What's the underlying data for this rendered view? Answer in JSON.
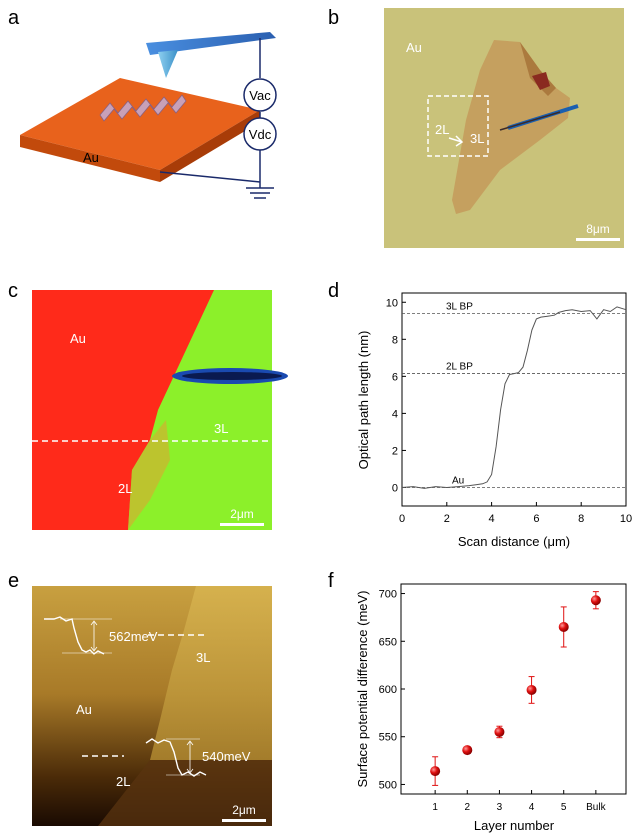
{
  "figure": {
    "panel_labels": [
      "a",
      "b",
      "c",
      "d",
      "e",
      "f"
    ]
  },
  "panel_a": {
    "substrate_label": "Au",
    "vac_label": "Vac",
    "vdc_label": "Vdc",
    "substrate_color": "#e8621c",
    "cantilever_color": "#3b7fcc"
  },
  "panel_b": {
    "au_label": "Au",
    "label_2l": "2L",
    "label_3l": "3L",
    "scale_bar": "8μm",
    "background_color": "#c9c27a"
  },
  "panel_c": {
    "au_label": "Au",
    "label_2l": "2L",
    "label_3l": "3L",
    "scale_bar": "2μm",
    "au_color": "#ff2a1a",
    "bp_color": "#8cf02a"
  },
  "panel_e": {
    "au_label": "Au",
    "label_2l": "2L",
    "label_3l": "3L",
    "step_upper": "562meV",
    "step_lower": "540meV",
    "scale_bar": "2μm"
  },
  "chart_data": [
    {
      "panel": "d",
      "type": "line",
      "xlabel": "Scan distance (μm)",
      "ylabel": "Optical path length (nm)",
      "xlim": [
        0,
        10
      ],
      "ylim": [
        -1,
        10.5
      ],
      "xticks": [
        "0",
        "2",
        "4",
        "6",
        "8",
        "10"
      ],
      "yticks": [
        "0",
        "2",
        "4",
        "6",
        "8",
        "10"
      ],
      "reference_lines": [
        {
          "label": "3L BP",
          "y": 9.4
        },
        {
          "label": "2L BP",
          "y": 6.15
        },
        {
          "label": "Au",
          "y": 0
        }
      ],
      "series": [
        {
          "name": "profile",
          "x": [
            0,
            0.5,
            1,
            1.5,
            2,
            2.5,
            3,
            3.3,
            3.6,
            3.8,
            4.0,
            4.2,
            4.4,
            4.6,
            4.8,
            5.0,
            5.2,
            5.4,
            5.6,
            5.8,
            6.0,
            6.2,
            6.5,
            6.8,
            7.0,
            7.3,
            7.6,
            8.0,
            8.4,
            8.7,
            9.0,
            9.3,
            9.6,
            10
          ],
          "y": [
            0.0,
            0.05,
            -0.05,
            0.05,
            0.0,
            0.05,
            0.1,
            0.15,
            0.2,
            0.3,
            0.7,
            2.2,
            4.2,
            5.6,
            6.1,
            6.15,
            6.2,
            6.5,
            7.4,
            8.5,
            9.1,
            9.2,
            9.25,
            9.3,
            9.45,
            9.55,
            9.6,
            9.5,
            9.55,
            9.1,
            9.6,
            9.5,
            9.75,
            9.6
          ]
        }
      ]
    },
    {
      "panel": "f",
      "type": "scatter",
      "xlabel": "Layer number",
      "ylabel": "Surface potential difference (meV)",
      "categories": [
        "1",
        "2",
        "3",
        "4",
        "5",
        "Bulk"
      ],
      "ylim": [
        490,
        710
      ],
      "yticks": [
        "500",
        "550",
        "600",
        "650",
        "700"
      ],
      "series": [
        {
          "name": "SPD",
          "values": [
            514,
            536,
            555,
            599,
            665,
            693
          ],
          "errors": [
            15,
            3,
            6,
            14,
            21,
            9
          ],
          "color": "#e01010"
        }
      ]
    }
  ]
}
